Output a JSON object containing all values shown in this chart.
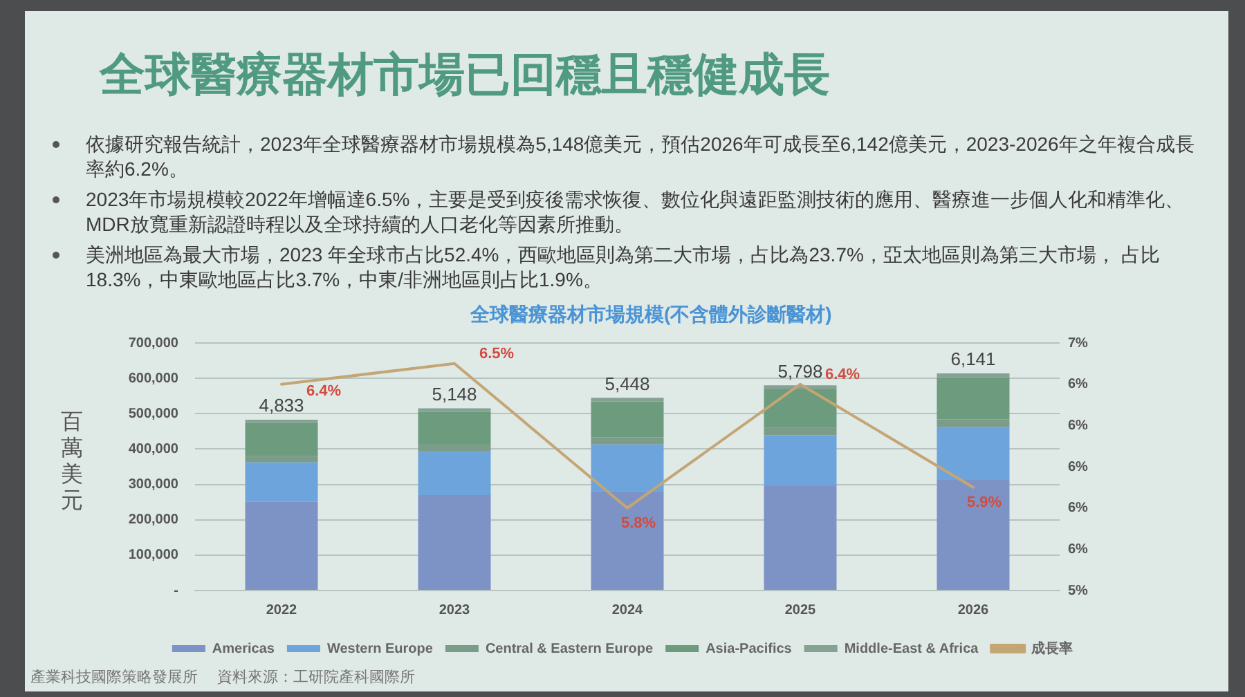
{
  "chart_data": {
    "type": "bar",
    "title": "全球醫療器材市場已回穩且穩健成長",
    "subtitle": "全球醫療器材市場規模(不含體外診斷醫材)",
    "ylabel": "百萬美元",
    "categories": [
      "2022",
      "2023",
      "2024",
      "2025",
      "2026"
    ],
    "series": [
      {
        "name": "Americas",
        "color": "#7d93c5",
        "values": [
          251000,
          270000,
          281000,
          298000,
          313000
        ]
      },
      {
        "name": "Western Europe",
        "color": "#6ea4dc",
        "values": [
          111000,
          122000,
          132000,
          141000,
          149000
        ]
      },
      {
        "name": "Central & Eastern Europe",
        "color": "#7a9c89",
        "values": [
          18000,
          19000,
          20000,
          21000,
          22000
        ]
      },
      {
        "name": "Asia-Pacifics",
        "color": "#6c9b7e",
        "values": [
          94000,
          94000,
          102000,
          109000,
          119000
        ]
      },
      {
        "name": "Middle-East & Africa",
        "color": "#86a293",
        "values": [
          9000,
          10000,
          10000,
          11000,
          11000
        ]
      },
      {
        "name": "成長率",
        "type": "line",
        "axis": "y2",
        "color": "#c4a675",
        "values": [
          6.4,
          6.5,
          5.8,
          6.4,
          5.9
        ],
        "value_labels": [
          "6.4%",
          "6.5%",
          "5.8%",
          "6.4%",
          "5.9%"
        ]
      }
    ],
    "stacked": true,
    "ylim": [
      0,
      700000
    ],
    "yticks": [
      {
        "value": 0,
        "label": "-"
      },
      {
        "value": 100000,
        "label": "100,000"
      },
      {
        "value": 200000,
        "label": "200,000"
      },
      {
        "value": 300000,
        "label": "300,000"
      },
      {
        "value": 400000,
        "label": "400,000"
      },
      {
        "value": 500000,
        "label": "500,000"
      },
      {
        "value": 600000,
        "label": "600,000"
      },
      {
        "value": 700000,
        "label": "700,000"
      }
    ],
    "y2lim": [
      5.4,
      6.6
    ],
    "y2ticks": [
      {
        "value": 5.4,
        "label": "5%"
      },
      {
        "value": 5.6,
        "label": "6%"
      },
      {
        "value": 5.8,
        "label": "6%"
      },
      {
        "value": 6.0,
        "label": "6%"
      },
      {
        "value": 6.2,
        "label": "6%"
      },
      {
        "value": 6.4,
        "label": "6%"
      },
      {
        "value": 6.6,
        "label": "7%"
      }
    ],
    "grid": "y",
    "legend": "bottom",
    "annotations": [
      {
        "text": "4,833",
        "x": "2022",
        "y": 483300
      },
      {
        "text": "5,148",
        "x": "2023",
        "y": 514800
      },
      {
        "text": "5,448",
        "x": "2024",
        "y": 544800
      },
      {
        "text": "5,798",
        "x": "2025",
        "y": 579800
      },
      {
        "text": "6,141",
        "x": "2026",
        "y": 614100
      },
      "依據研究報告統計，2023年全球醫療器材市場規模為5,148億美元，預估2026年可成長至6,142億美元，2023-2026年之年複合成長率約6.2%。",
      "2023年市場規模較2022年增幅達6.5%，主要是受到疫後需求恢復、數位化與遠距監測技術的應用、醫療進一步個人化和精準化、MDR放寬重新認證時程以及全球持續的人口老化等因素所推動。",
      "美洲地區為最大市場，2023 年全球市占比52.4%，西歐地區則為第二大市場，占比為23.7%，亞太地區則為第三大市場， 占比18.3%，中東歐地區占比3.7%，中東/非洲地區則占比1.9%。",
      "產業科技國際策略發展所",
      "資料來源：工研院產科國際所"
    ]
  }
}
